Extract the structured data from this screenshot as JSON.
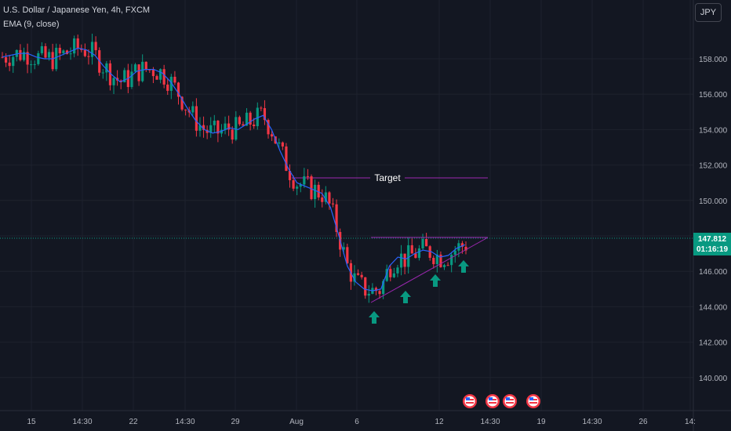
{
  "header": {
    "symbol": "U.S. Dollar / Japanese Yen, 4h, FXCM",
    "indicator": "EMA (9, close)"
  },
  "currency_button": "JPY",
  "last_price": {
    "value": "147.812",
    "countdown": "01:16:19"
  },
  "colors": {
    "background": "#131722",
    "grid": "#1e222d",
    "up": "#089981",
    "down": "#f23645",
    "ema": "#2962ff",
    "trendline": "#9c27b0",
    "axis_text": "#b2b5be"
  },
  "chart_data": {
    "type": "candlestick",
    "title": "U.S. Dollar / Japanese Yen, 4h, FXCM",
    "y_axis": {
      "ticks": [
        "158.000",
        "156.000",
        "154.000",
        "152.000",
        "150.000",
        "148.000",
        "146.000",
        "144.000",
        "142.000",
        "140.000"
      ],
      "ylim": [
        139.5,
        160.5
      ],
      "side": "right"
    },
    "x_axis": {
      "ticks": [
        "15",
        "14:30",
        "22",
        "14:30",
        "29",
        "Aug",
        "6",
        "12",
        "14:30",
        "19",
        "14:30",
        "26",
        "14:"
      ]
    },
    "series": [
      {
        "name": "EMA (9, close)",
        "values": [
          158.1,
          158.2,
          158.3,
          158.3,
          158.1,
          158.0,
          158.0,
          158.2,
          158.4,
          158.6,
          158.5,
          158.2,
          157.6,
          157.1,
          156.7,
          156.9,
          157.3,
          157.4,
          157.4,
          157.2,
          156.7,
          156.0,
          155.2,
          154.5,
          154.0,
          153.8,
          153.9,
          154.1,
          154.0,
          154.3,
          154.6,
          154.8,
          154.0,
          152.8,
          151.8,
          151.0,
          150.8,
          150.6,
          150.4,
          149.6,
          148.0,
          146.3,
          145.4,
          145.0,
          144.9,
          145.0,
          146.3,
          146.8,
          146.7,
          147.0,
          147.2,
          147.1,
          146.8,
          146.9,
          147.3,
          147.5
        ]
      }
    ],
    "annotations": [
      {
        "type": "horizontal_line",
        "label": "Target",
        "price": 151.35
      },
      {
        "type": "ascending_triangle",
        "resistance": 147.9,
        "support_from": 144.4,
        "support_to": 147.9
      },
      {
        "type": "arrow_up",
        "count": 4
      }
    ],
    "last_price": 147.812,
    "grid": true,
    "legend": "top-left"
  }
}
